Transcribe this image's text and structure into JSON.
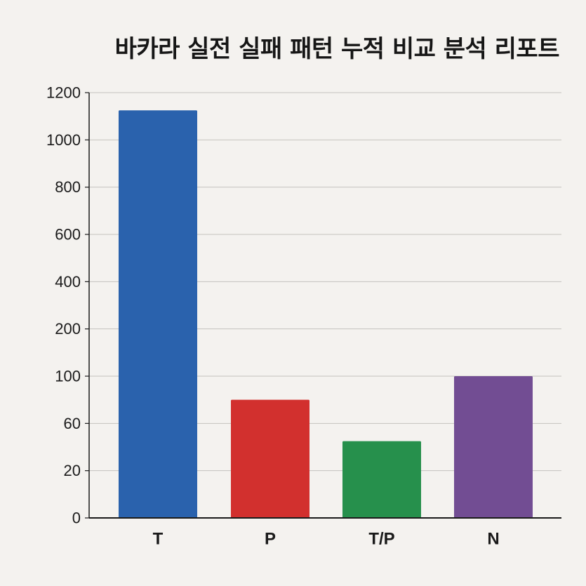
{
  "chart_data": {
    "type": "bar",
    "title": "바카라 실전 실패 패턴 누적 비교 분석 리포트",
    "xlabel": "",
    "ylabel": "",
    "categories": [
      "T",
      "P",
      "T/P",
      "N"
    ],
    "values": [
      1125,
      80,
      45,
      100
    ],
    "y_ticks": [
      "0",
      "20",
      "60",
      "100",
      "200",
      "400",
      "600",
      "800",
      "1000",
      "1200"
    ],
    "y_tick_values": [
      0,
      20,
      60,
      100,
      200,
      400,
      600,
      800,
      1000,
      1200
    ],
    "colors": [
      "#2a62ad",
      "#d2302e",
      "#26904c",
      "#724d93"
    ],
    "grid": true,
    "legend": "none"
  }
}
